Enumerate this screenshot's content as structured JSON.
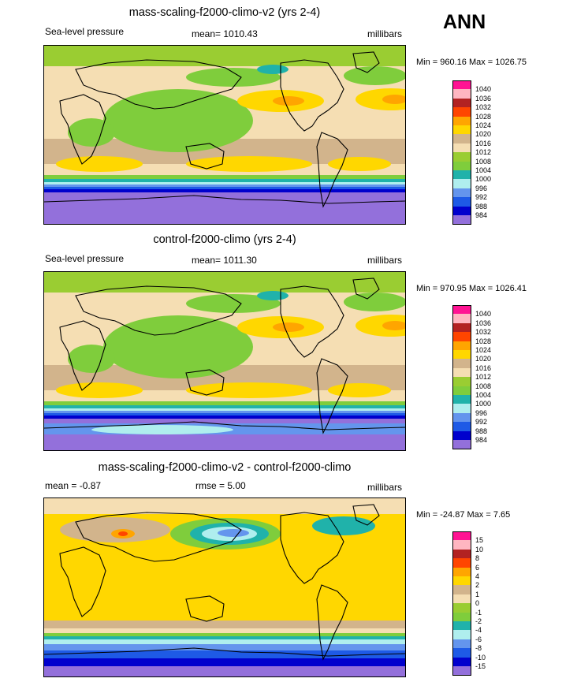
{
  "season": "ANN",
  "colors": {
    "slp": [
      "#9370db",
      "#0000cd",
      "#1e5ae6",
      "#6495ed",
      "#afeeee",
      "#20b2aa",
      "#7fcd3c",
      "#9acd32",
      "#f5deb3",
      "#d2b48c",
      "#ffd700",
      "#ffa500",
      "#ff4500",
      "#b22222",
      "#ffb6c1",
      "#ff1493"
    ],
    "diff": [
      "#9370db",
      "#0000cd",
      "#1e5ae6",
      "#6495ed",
      "#afeeee",
      "#20b2aa",
      "#7fcd3c",
      "#9acd32",
      "#f5deb3",
      "#d2b48c",
      "#ffd700",
      "#ffa500",
      "#ff4500",
      "#b22222",
      "#ffb6c1",
      "#ff1493"
    ]
  },
  "panels": [
    {
      "title": "mass-scaling-f2000-climo-v2 (yrs 2-4)",
      "left_label": "Sea-level pressure",
      "center_label": "mean= 1010.43",
      "right_label": "millibars",
      "minmax": "Min = 960.16 Max = 1026.75"
    },
    {
      "title": "control-f2000-climo (yrs 2-4)",
      "left_label": "Sea-level pressure",
      "center_label": "mean= 1011.30",
      "right_label": "millibars",
      "minmax": "Min = 970.95 Max = 1026.41"
    },
    {
      "title": "mass-scaling-f2000-climo-v2 - control-f2000-climo",
      "left_label": "mean =  -0.87",
      "center_label": "rmse =   5.00",
      "right_label": "millibars",
      "minmax": "Min = -24.87 Max =   7.65"
    }
  ],
  "chart_data": [
    {
      "type": "heatmap",
      "title": "mass-scaling-f2000-climo-v2 (yrs 2-4)",
      "variable": "Sea-level pressure",
      "units": "millibars",
      "mean": 1010.43,
      "min": 960.16,
      "max": 1026.75,
      "contour_levels": [
        984,
        988,
        992,
        996,
        1000,
        1004,
        1008,
        1012,
        1016,
        1020,
        1024,
        1028,
        1032,
        1036,
        1040
      ],
      "level_labels": [
        "984",
        "988",
        "992",
        "996",
        "1000",
        "1004",
        "1008",
        "1012",
        "1016",
        "1020",
        "1024",
        "1028",
        "1032",
        "1036",
        "1040"
      ]
    },
    {
      "type": "heatmap",
      "title": "control-f2000-climo (yrs 2-4)",
      "variable": "Sea-level pressure",
      "units": "millibars",
      "mean": 1011.3,
      "min": 970.95,
      "max": 1026.41,
      "contour_levels": [
        984,
        988,
        992,
        996,
        1000,
        1004,
        1008,
        1012,
        1016,
        1020,
        1024,
        1028,
        1032,
        1036,
        1040
      ],
      "level_labels": [
        "984",
        "988",
        "992",
        "996",
        "1000",
        "1004",
        "1008",
        "1012",
        "1016",
        "1020",
        "1024",
        "1028",
        "1032",
        "1036",
        "1040"
      ]
    },
    {
      "type": "heatmap",
      "title": "mass-scaling-f2000-climo-v2 - control-f2000-climo",
      "units": "millibars",
      "mean": -0.87,
      "rmse": 5.0,
      "min": -24.87,
      "max": 7.65,
      "contour_levels": [
        -15,
        -10,
        -8,
        -6,
        -4,
        -2,
        -1,
        0,
        1,
        2,
        4,
        6,
        8,
        10,
        15
      ],
      "level_labels": [
        "-15",
        "-10",
        "-8",
        "-6",
        "-4",
        "-2",
        "-1",
        "0",
        "1",
        "2",
        "4",
        "6",
        "8",
        "10",
        "15"
      ]
    }
  ]
}
